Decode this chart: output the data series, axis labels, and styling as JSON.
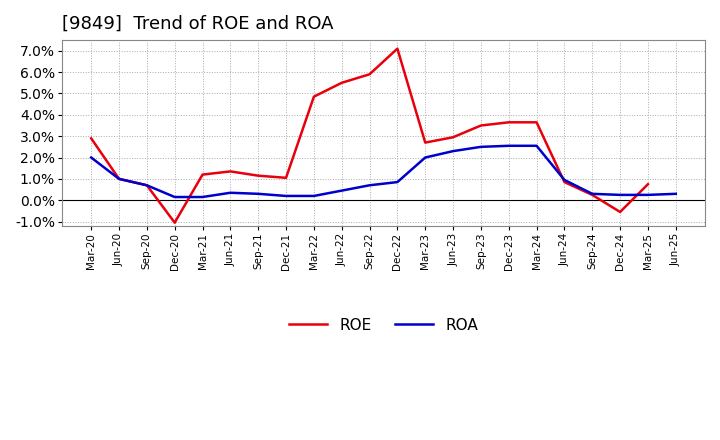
{
  "title": "[9849]  Trend of ROE and ROA",
  "title_fontsize": 13,
  "background_color": "#ffffff",
  "plot_bg_color": "#ffffff",
  "grid_color": "#aaaaaa",
  "roe_color": "#e8000d",
  "roa_color": "#0000cc",
  "line_width": 1.8,
  "labels": [
    "Mar-20",
    "Jun-20",
    "Sep-20",
    "Dec-20",
    "Mar-21",
    "Jun-21",
    "Sep-21",
    "Dec-21",
    "Mar-22",
    "Jun-22",
    "Sep-22",
    "Dec-22",
    "Mar-23",
    "Jun-23",
    "Sep-23",
    "Dec-23",
    "Mar-24",
    "Jun-24",
    "Sep-24",
    "Dec-24",
    "Mar-25",
    "Jun-25"
  ],
  "roe": [
    2.9,
    1.0,
    0.7,
    -1.05,
    1.2,
    1.35,
    1.15,
    1.05,
    4.85,
    5.5,
    5.9,
    7.1,
    2.7,
    2.95,
    3.5,
    3.65,
    3.65,
    0.85,
    0.25,
    -0.55,
    0.75,
    null
  ],
  "roa": [
    2.0,
    1.0,
    0.7,
    0.15,
    0.15,
    0.35,
    0.3,
    0.2,
    0.2,
    0.45,
    0.7,
    0.85,
    2.0,
    2.3,
    2.5,
    2.55,
    2.55,
    0.95,
    0.3,
    0.25,
    0.25,
    0.3
  ],
  "ylim": [
    -1.2,
    7.5
  ],
  "yticks": [
    -1.0,
    0.0,
    1.0,
    2.0,
    3.0,
    4.0,
    5.0,
    6.0,
    7.0
  ]
}
